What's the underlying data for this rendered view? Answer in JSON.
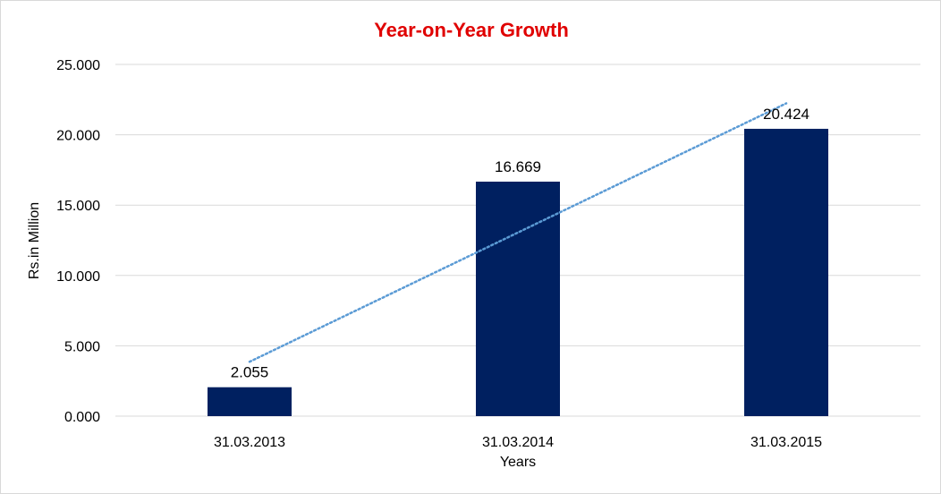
{
  "chart_data": {
    "type": "bar",
    "title": "Year-on-Year Growth",
    "xlabel": "Years",
    "ylabel": "Rs.in Million",
    "categories": [
      "31.03.2013",
      "31.03.2014",
      "31.03.2015"
    ],
    "values": [
      2.055,
      16.669,
      20.424
    ],
    "value_labels": [
      "2.055",
      "16.669",
      "20.424"
    ],
    "ylim": [
      0,
      25
    ],
    "yticks": [
      0,
      5,
      10,
      15,
      20,
      25
    ],
    "ytick_labels": [
      "0.000",
      "5.000",
      "10.000",
      "15.000",
      "20.000",
      "25.000"
    ],
    "grid": true,
    "legend": "none",
    "trendline": {
      "type": "linear",
      "style": "dotted"
    },
    "colors": {
      "title": "#e00000",
      "bar": "#002060",
      "trendline": "#5b9bd5",
      "grid": "#d9d9d9"
    }
  }
}
